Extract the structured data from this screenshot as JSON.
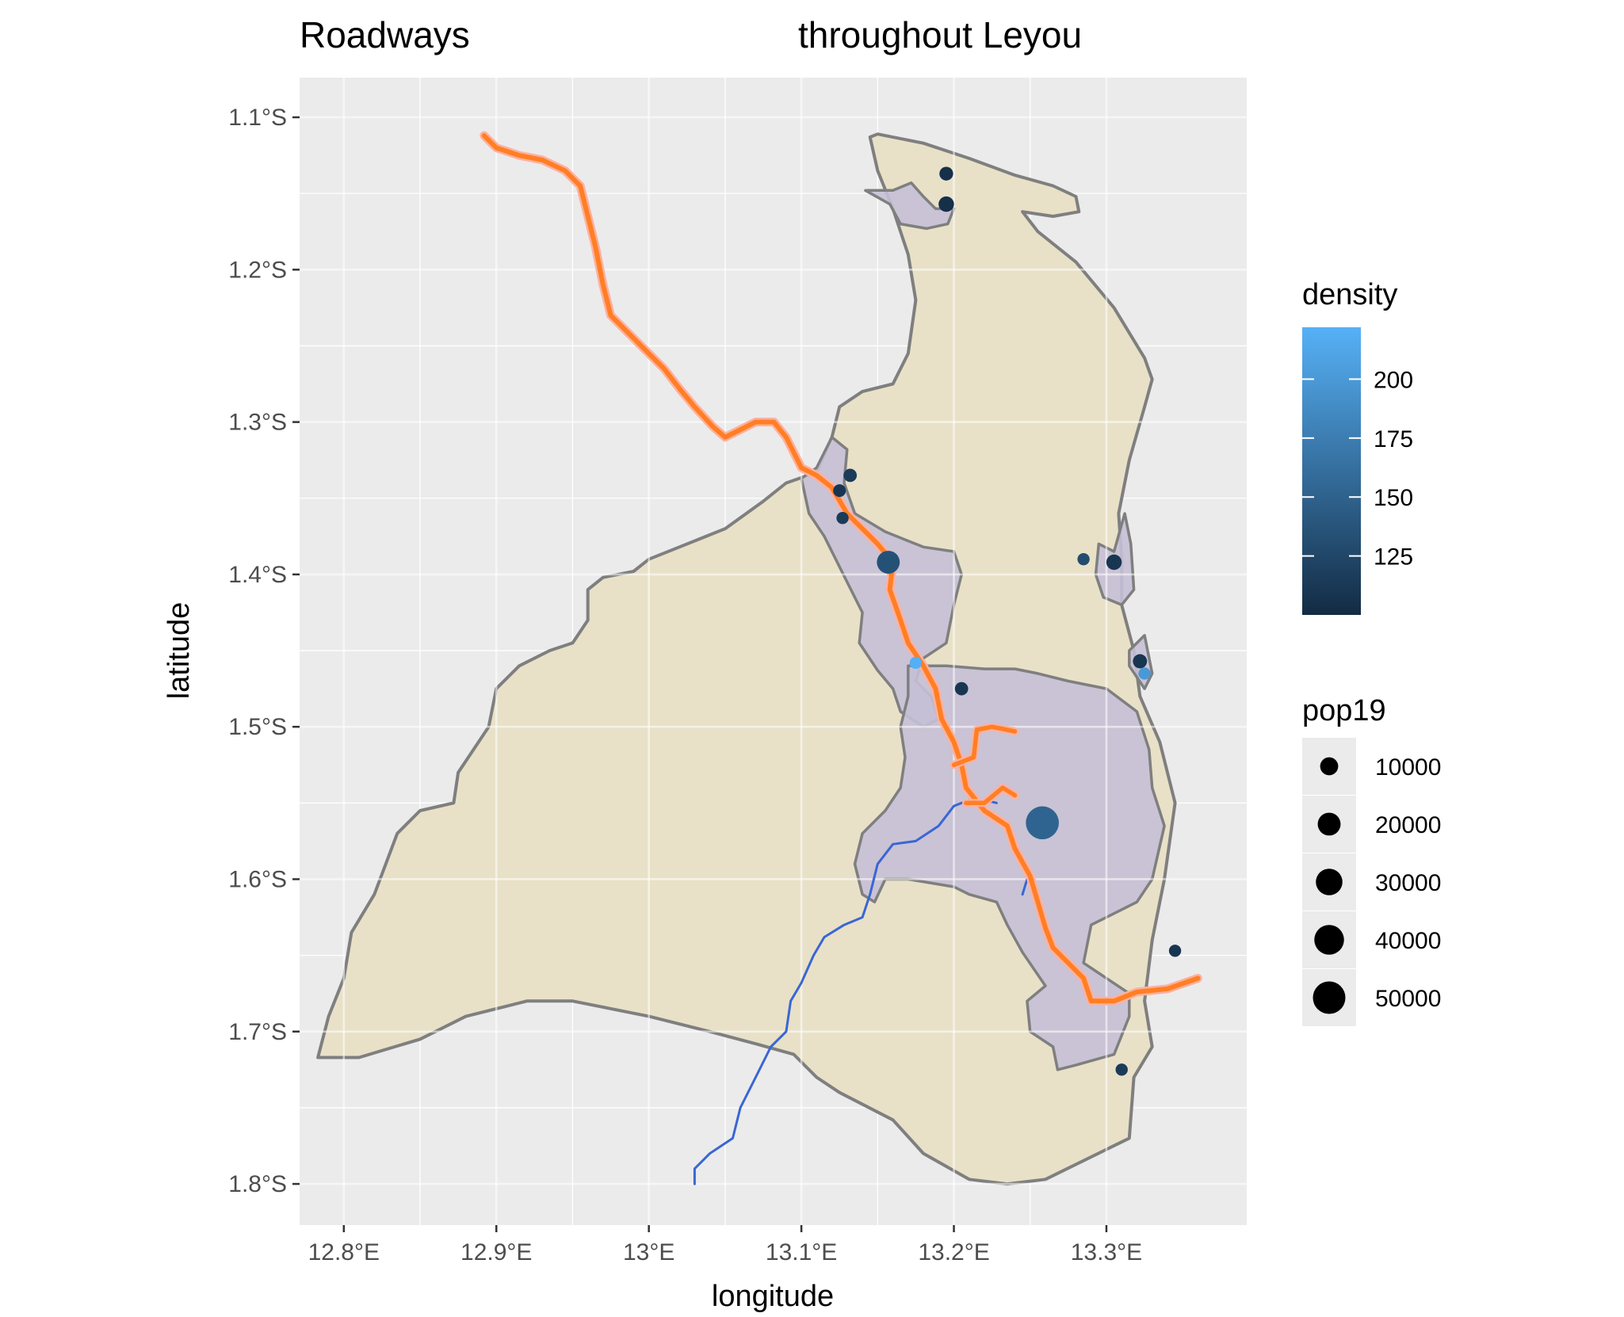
{
  "title_left": "Roadways",
  "title_right": "throughout Leyou",
  "x_axis": {
    "label": "longitude",
    "ticks": [
      {
        "value": 12.8,
        "label": "12.8°E"
      },
      {
        "value": 12.9,
        "label": "12.9°E"
      },
      {
        "value": 13.0,
        "label": "13°E"
      },
      {
        "value": 13.1,
        "label": "13.1°E"
      },
      {
        "value": 13.2,
        "label": "13.2°E"
      },
      {
        "value": 13.3,
        "label": "13.3°E"
      }
    ]
  },
  "y_axis": {
    "label": "latitude",
    "ticks": [
      {
        "value": -1.1,
        "label": "1.1°S"
      },
      {
        "value": -1.2,
        "label": "1.2°S"
      },
      {
        "value": -1.3,
        "label": "1.3°S"
      },
      {
        "value": -1.4,
        "label": "1.4°S"
      },
      {
        "value": -1.5,
        "label": "1.5°S"
      },
      {
        "value": -1.6,
        "label": "1.6°S"
      },
      {
        "value": -1.7,
        "label": "1.7°S"
      },
      {
        "value": -1.8,
        "label": "1.8°S"
      }
    ]
  },
  "legend_density": {
    "title": "density",
    "color_low": "#132b43",
    "color_high": "#56b1f7",
    "min": 100,
    "max": 222,
    "ticks": [
      {
        "value": 125,
        "label": "125"
      },
      {
        "value": 150,
        "label": "150"
      },
      {
        "value": 175,
        "label": "175"
      },
      {
        "value": 200,
        "label": "200"
      }
    ]
  },
  "legend_pop": {
    "title": "pop19",
    "items": [
      {
        "value": 10000,
        "label": "10000"
      },
      {
        "value": 20000,
        "label": "20000"
      },
      {
        "value": 30000,
        "label": "30000"
      },
      {
        "value": 40000,
        "label": "40000"
      },
      {
        "value": 50000,
        "label": "50000"
      }
    ]
  },
  "colors": {
    "panel_bg": "#ebebeb",
    "grid": "#ffffff",
    "district_fill": "#e8e1c8",
    "district_stroke": "#7f7f7f",
    "urban_fill": "#c5c0d6",
    "primary_road": "#ff7f24",
    "primary_road_halo": "#ffb0a0",
    "secondary_road": "#3a66d4"
  },
  "map": {
    "x_limits": [
      12.771,
      13.392
    ],
    "y_limits": [
      -1.827,
      -1.074
    ],
    "district_boundary": [
      [
        13.15,
        -1.111
      ],
      [
        13.18,
        -1.117
      ],
      [
        13.21,
        -1.127
      ],
      [
        13.24,
        -1.138
      ],
      [
        13.265,
        -1.145
      ],
      [
        13.28,
        -1.152
      ],
      [
        13.282,
        -1.162
      ],
      [
        13.265,
        -1.165
      ],
      [
        13.245,
        -1.162
      ],
      [
        13.255,
        -1.175
      ],
      [
        13.28,
        -1.195
      ],
      [
        13.305,
        -1.225
      ],
      [
        13.325,
        -1.258
      ],
      [
        13.33,
        -1.272
      ],
      [
        13.325,
        -1.29
      ],
      [
        13.315,
        -1.325
      ],
      [
        13.308,
        -1.36
      ],
      [
        13.31,
        -1.39
      ],
      [
        13.31,
        -1.42
      ],
      [
        13.318,
        -1.45
      ],
      [
        13.322,
        -1.48
      ],
      [
        13.335,
        -1.51
      ],
      [
        13.345,
        -1.55
      ],
      [
        13.338,
        -1.6
      ],
      [
        13.33,
        -1.64
      ],
      [
        13.325,
        -1.68
      ],
      [
        13.33,
        -1.71
      ],
      [
        13.318,
        -1.73
      ],
      [
        13.315,
        -1.77
      ],
      [
        13.26,
        -1.797
      ],
      [
        13.235,
        -1.8
      ],
      [
        13.21,
        -1.797
      ],
      [
        13.18,
        -1.78
      ],
      [
        13.16,
        -1.758
      ],
      [
        13.125,
        -1.74
      ],
      [
        13.11,
        -1.73
      ],
      [
        13.095,
        -1.715
      ],
      [
        13.07,
        -1.708
      ],
      [
        13.04,
        -1.7
      ],
      [
        13.0,
        -1.69
      ],
      [
        12.975,
        -1.685
      ],
      [
        12.95,
        -1.68
      ],
      [
        12.92,
        -1.68
      ],
      [
        12.88,
        -1.69
      ],
      [
        12.85,
        -1.705
      ],
      [
        12.81,
        -1.717
      ],
      [
        12.783,
        -1.717
      ],
      [
        12.79,
        -1.69
      ],
      [
        12.8,
        -1.665
      ],
      [
        12.805,
        -1.635
      ],
      [
        12.82,
        -1.61
      ],
      [
        12.835,
        -1.57
      ],
      [
        12.85,
        -1.555
      ],
      [
        12.872,
        -1.55
      ],
      [
        12.875,
        -1.53
      ],
      [
        12.885,
        -1.515
      ],
      [
        12.895,
        -1.5
      ],
      [
        12.9,
        -1.475
      ],
      [
        12.915,
        -1.46
      ],
      [
        12.935,
        -1.45
      ],
      [
        12.95,
        -1.445
      ],
      [
        12.96,
        -1.43
      ],
      [
        12.96,
        -1.41
      ],
      [
        12.97,
        -1.402
      ],
      [
        12.99,
        -1.398
      ],
      [
        13.0,
        -1.39
      ],
      [
        13.02,
        -1.382
      ],
      [
        13.05,
        -1.37
      ],
      [
        13.075,
        -1.352
      ],
      [
        13.09,
        -1.34
      ],
      [
        13.11,
        -1.333
      ],
      [
        13.12,
        -1.31
      ],
      [
        13.125,
        -1.29
      ],
      [
        13.14,
        -1.28
      ],
      [
        13.16,
        -1.275
      ],
      [
        13.17,
        -1.255
      ],
      [
        13.175,
        -1.22
      ],
      [
        13.17,
        -1.19
      ],
      [
        13.16,
        -1.16
      ],
      [
        13.15,
        -1.135
      ],
      [
        13.145,
        -1.113
      ]
    ],
    "urban_areas": [
      [
        [
          13.142,
          -1.148
        ],
        [
          13.16,
          -1.148
        ],
        [
          13.172,
          -1.143
        ],
        [
          13.18,
          -1.152
        ],
        [
          13.188,
          -1.16
        ],
        [
          13.2,
          -1.16
        ],
        [
          13.196,
          -1.17
        ],
        [
          13.182,
          -1.173
        ],
        [
          13.165,
          -1.17
        ],
        [
          13.158,
          -1.157
        ]
      ],
      [
        [
          13.1,
          -1.337
        ],
        [
          13.11,
          -1.33
        ],
        [
          13.12,
          -1.31
        ],
        [
          13.13,
          -1.318
        ],
        [
          13.128,
          -1.34
        ],
        [
          13.135,
          -1.36
        ],
        [
          13.155,
          -1.372
        ],
        [
          13.18,
          -1.382
        ],
        [
          13.2,
          -1.385
        ],
        [
          13.205,
          -1.4
        ],
        [
          13.2,
          -1.42
        ],
        [
          13.195,
          -1.445
        ],
        [
          13.18,
          -1.455
        ],
        [
          13.175,
          -1.47
        ],
        [
          13.185,
          -1.48
        ],
        [
          13.19,
          -1.495
        ],
        [
          13.18,
          -1.5
        ],
        [
          13.165,
          -1.49
        ],
        [
          13.16,
          -1.475
        ],
        [
          13.15,
          -1.463
        ],
        [
          13.138,
          -1.445
        ],
        [
          13.14,
          -1.425
        ],
        [
          13.13,
          -1.405
        ],
        [
          13.115,
          -1.375
        ],
        [
          13.105,
          -1.36
        ]
      ],
      [
        [
          13.17,
          -1.46
        ],
        [
          13.195,
          -1.46
        ],
        [
          13.22,
          -1.462
        ],
        [
          13.24,
          -1.462
        ],
        [
          13.255,
          -1.465
        ],
        [
          13.275,
          -1.47
        ],
        [
          13.3,
          -1.475
        ],
        [
          13.32,
          -1.49
        ],
        [
          13.328,
          -1.515
        ],
        [
          13.33,
          -1.54
        ],
        [
          13.338,
          -1.565
        ],
        [
          13.33,
          -1.6
        ],
        [
          13.32,
          -1.615
        ],
        [
          13.3,
          -1.625
        ],
        [
          13.29,
          -1.63
        ],
        [
          13.285,
          -1.655
        ],
        [
          13.3,
          -1.665
        ],
        [
          13.315,
          -1.675
        ],
        [
          13.315,
          -1.69
        ],
        [
          13.305,
          -1.715
        ],
        [
          13.28,
          -1.722
        ],
        [
          13.268,
          -1.725
        ],
        [
          13.265,
          -1.71
        ],
        [
          13.25,
          -1.7
        ],
        [
          13.248,
          -1.68
        ],
        [
          13.26,
          -1.67
        ],
        [
          13.245,
          -1.648
        ],
        [
          13.235,
          -1.63
        ],
        [
          13.228,
          -1.615
        ],
        [
          13.21,
          -1.61
        ],
        [
          13.2,
          -1.605
        ],
        [
          13.17,
          -1.6
        ],
        [
          13.155,
          -1.6
        ],
        [
          13.148,
          -1.615
        ],
        [
          13.14,
          -1.61
        ],
        [
          13.135,
          -1.59
        ],
        [
          13.14,
          -1.57
        ],
        [
          13.155,
          -1.555
        ],
        [
          13.165,
          -1.54
        ],
        [
          13.168,
          -1.52
        ],
        [
          13.165,
          -1.5
        ],
        [
          13.17,
          -1.48
        ]
      ],
      [
        [
          13.295,
          -1.38
        ],
        [
          13.305,
          -1.385
        ],
        [
          13.312,
          -1.36
        ],
        [
          13.316,
          -1.38
        ],
        [
          13.318,
          -1.41
        ],
        [
          13.31,
          -1.42
        ],
        [
          13.298,
          -1.415
        ],
        [
          13.293,
          -1.4
        ]
      ],
      [
        [
          13.315,
          -1.45
        ],
        [
          13.325,
          -1.44
        ],
        [
          13.33,
          -1.465
        ],
        [
          13.325,
          -1.475
        ],
        [
          13.315,
          -1.46
        ]
      ]
    ],
    "primary_road": [
      [
        12.892,
        -1.112
      ],
      [
        12.9,
        -1.12
      ],
      [
        12.915,
        -1.125
      ],
      [
        12.93,
        -1.128
      ],
      [
        12.945,
        -1.135
      ],
      [
        12.955,
        -1.145
      ],
      [
        12.96,
        -1.165
      ],
      [
        12.965,
        -1.185
      ],
      [
        12.97,
        -1.21
      ],
      [
        12.975,
        -1.23
      ],
      [
        12.99,
        -1.245
      ],
      [
        13.0,
        -1.255
      ],
      [
        13.01,
        -1.265
      ],
      [
        13.02,
        -1.278
      ],
      [
        13.03,
        -1.29
      ],
      [
        13.042,
        -1.303
      ],
      [
        13.05,
        -1.31
      ],
      [
        13.06,
        -1.305
      ],
      [
        13.07,
        -1.3
      ],
      [
        13.082,
        -1.3
      ],
      [
        13.09,
        -1.31
      ],
      [
        13.095,
        -1.32
      ],
      [
        13.1,
        -1.33
      ],
      [
        13.11,
        -1.335
      ],
      [
        13.12,
        -1.343
      ],
      [
        13.13,
        -1.36
      ],
      [
        13.14,
        -1.37
      ],
      [
        13.15,
        -1.38
      ],
      [
        13.16,
        -1.392
      ],
      [
        13.158,
        -1.41
      ],
      [
        13.165,
        -1.43
      ],
      [
        13.17,
        -1.445
      ],
      [
        13.18,
        -1.46
      ],
      [
        13.188,
        -1.475
      ],
      [
        13.192,
        -1.495
      ],
      [
        13.2,
        -1.51
      ],
      [
        13.205,
        -1.525
      ],
      [
        13.208,
        -1.54
      ],
      [
        13.22,
        -1.555
      ],
      [
        13.235,
        -1.565
      ],
      [
        13.24,
        -1.58
      ],
      [
        13.25,
        -1.598
      ],
      [
        13.255,
        -1.615
      ],
      [
        13.26,
        -1.632
      ],
      [
        13.265,
        -1.645
      ],
      [
        13.275,
        -1.655
      ],
      [
        13.285,
        -1.665
      ],
      [
        13.29,
        -1.68
      ],
      [
        13.305,
        -1.68
      ],
      [
        13.32,
        -1.674
      ],
      [
        13.34,
        -1.672
      ],
      [
        13.36,
        -1.665
      ]
    ],
    "primary_spurs": [
      [
        [
          13.2,
          -1.525
        ],
        [
          13.213,
          -1.52
        ],
        [
          13.215,
          -1.502
        ],
        [
          13.225,
          -1.5
        ],
        [
          13.24,
          -1.503
        ]
      ],
      [
        [
          13.208,
          -1.55
        ],
        [
          13.22,
          -1.55
        ],
        [
          13.232,
          -1.54
        ],
        [
          13.24,
          -1.545
        ]
      ]
    ],
    "secondary_road": [
      [
        13.21,
        -1.548
      ],
      [
        13.2,
        -1.552
      ],
      [
        13.19,
        -1.565
      ],
      [
        13.175,
        -1.575
      ],
      [
        13.16,
        -1.577
      ],
      [
        13.15,
        -1.59
      ],
      [
        13.145,
        -1.61
      ],
      [
        13.14,
        -1.625
      ],
      [
        13.128,
        -1.63
      ],
      [
        13.115,
        -1.638
      ],
      [
        13.108,
        -1.65
      ],
      [
        13.1,
        -1.668
      ],
      [
        13.093,
        -1.68
      ],
      [
        13.09,
        -1.7
      ],
      [
        13.08,
        -1.71
      ],
      [
        13.07,
        -1.73
      ],
      [
        13.06,
        -1.75
      ],
      [
        13.055,
        -1.77
      ],
      [
        13.04,
        -1.78
      ],
      [
        13.03,
        -1.79
      ],
      [
        13.03,
        -1.8
      ]
    ],
    "secondary_spurs": [
      [
        [
          13.22,
          -1.548
        ],
        [
          13.228,
          -1.55
        ]
      ],
      [
        [
          13.248,
          -1.6
        ],
        [
          13.245,
          -1.61
        ]
      ]
    ],
    "settlements": [
      {
        "lon": 13.195,
        "lat": -1.137,
        "pop19": 4000,
        "density": 105
      },
      {
        "lon": 13.195,
        "lat": -1.157,
        "pop19": 6000,
        "density": 105
      },
      {
        "lon": 13.132,
        "lat": -1.335,
        "pop19": 3500,
        "density": 115
      },
      {
        "lon": 13.125,
        "lat": -1.345,
        "pop19": 3000,
        "density": 110
      },
      {
        "lon": 13.127,
        "lat": -1.363,
        "pop19": 2500,
        "density": 115
      },
      {
        "lon": 13.157,
        "lat": -1.392,
        "pop19": 20000,
        "density": 135
      },
      {
        "lon": 13.175,
        "lat": -1.458,
        "pop19": 2500,
        "density": 220
      },
      {
        "lon": 13.205,
        "lat": -1.475,
        "pop19": 3500,
        "density": 110
      },
      {
        "lon": 13.285,
        "lat": -1.39,
        "pop19": 2500,
        "density": 130
      },
      {
        "lon": 13.305,
        "lat": -1.392,
        "pop19": 6000,
        "density": 110
      },
      {
        "lon": 13.322,
        "lat": -1.457,
        "pop19": 4500,
        "density": 110
      },
      {
        "lon": 13.325,
        "lat": -1.465,
        "pop19": 2500,
        "density": 200
      },
      {
        "lon": 13.258,
        "lat": -1.563,
        "pop19": 52000,
        "density": 152
      },
      {
        "lon": 13.345,
        "lat": -1.647,
        "pop19": 2500,
        "density": 110
      },
      {
        "lon": 13.31,
        "lat": -1.725,
        "pop19": 2500,
        "density": 115
      }
    ]
  }
}
